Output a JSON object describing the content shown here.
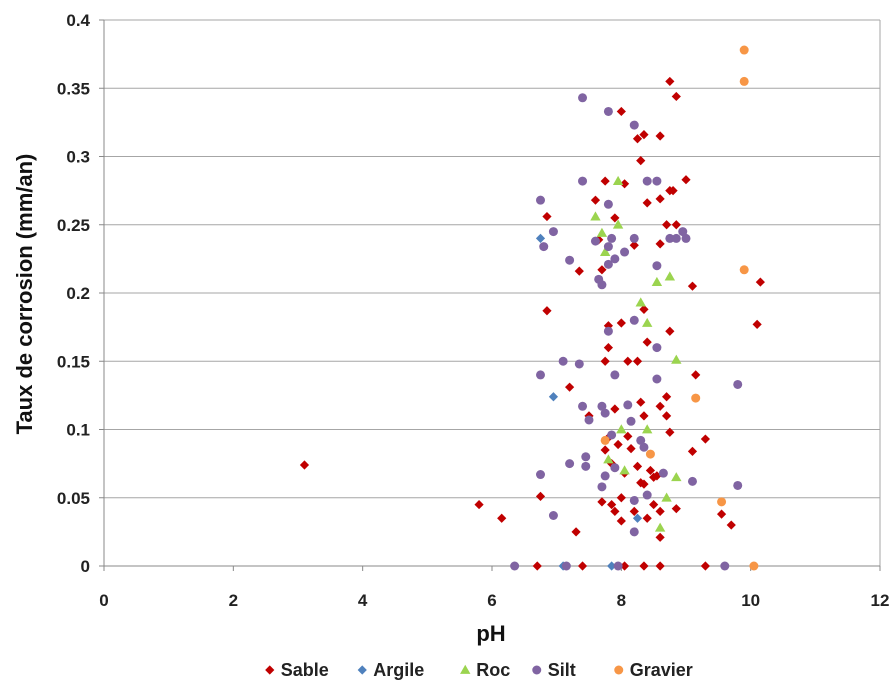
{
  "chart_data": {
    "type": "scatter",
    "title": "",
    "xlabel": "pH",
    "ylabel": "Taux de corrosion (mm/an)",
    "xlim": [
      0,
      12
    ],
    "ylim": [
      0,
      0.4
    ],
    "x_ticks": [
      "0",
      "2",
      "4",
      "6",
      "8",
      "10",
      "12"
    ],
    "y_ticks": [
      "0",
      "0.05",
      "0.1",
      "0.15",
      "0.2",
      "0.25",
      "0.3",
      "0.35",
      "0.4"
    ],
    "grid": "horizontal",
    "legend_position": "bottom",
    "series": [
      {
        "name": "Sable",
        "color": "#c00000",
        "marker": "diamond",
        "points": [
          [
            3.1,
            0.074
          ],
          [
            5.8,
            0.045
          ],
          [
            6.15,
            0.035
          ],
          [
            6.7,
            0
          ],
          [
            6.75,
            0.051
          ],
          [
            6.85,
            0.187
          ],
          [
            6.85,
            0.256
          ],
          [
            7.2,
            0.131
          ],
          [
            7.3,
            0.025
          ],
          [
            7.35,
            0.216
          ],
          [
            7.4,
            0
          ],
          [
            7.5,
            0.11
          ],
          [
            7.6,
            0.268
          ],
          [
            7.65,
            0.239
          ],
          [
            7.7,
            0.217
          ],
          [
            7.7,
            0.047
          ],
          [
            7.75,
            0.282
          ],
          [
            7.75,
            0.15
          ],
          [
            7.75,
            0.085
          ],
          [
            7.8,
            0.176
          ],
          [
            7.8,
            0.16
          ],
          [
            7.8,
            0.094
          ],
          [
            7.85,
            0.075
          ],
          [
            7.85,
            0.045
          ],
          [
            7.9,
            0.255
          ],
          [
            7.9,
            0.115
          ],
          [
            7.9,
            0.04
          ],
          [
            7.95,
            0.089
          ],
          [
            8.0,
            0.333
          ],
          [
            8.0,
            0.178
          ],
          [
            8.0,
            0.05
          ],
          [
            8.0,
            0.033
          ],
          [
            8.05,
            0.28
          ],
          [
            8.05,
            0.068
          ],
          [
            8.05,
            0
          ],
          [
            8.1,
            0.15
          ],
          [
            8.1,
            0.095
          ],
          [
            8.15,
            0.086
          ],
          [
            8.2,
            0.235
          ],
          [
            8.2,
            0.04
          ],
          [
            8.25,
            0.313
          ],
          [
            8.25,
            0.15
          ],
          [
            8.25,
            0.073
          ],
          [
            8.3,
            0.297
          ],
          [
            8.3,
            0.12
          ],
          [
            8.3,
            0.061
          ],
          [
            8.35,
            0.316
          ],
          [
            8.35,
            0.188
          ],
          [
            8.35,
            0.11
          ],
          [
            8.35,
            0.06
          ],
          [
            8.35,
            0
          ],
          [
            8.4,
            0.266
          ],
          [
            8.4,
            0.164
          ],
          [
            8.4,
            0.035
          ],
          [
            8.45,
            0.07
          ],
          [
            8.5,
            0.065
          ],
          [
            8.5,
            0.045
          ],
          [
            8.55,
            0.066
          ],
          [
            8.6,
            0.315
          ],
          [
            8.6,
            0.269
          ],
          [
            8.6,
            0.236
          ],
          [
            8.6,
            0.117
          ],
          [
            8.6,
            0.04
          ],
          [
            8.6,
            0.021
          ],
          [
            8.6,
            0
          ],
          [
            8.7,
            0.25
          ],
          [
            8.7,
            0.124
          ],
          [
            8.7,
            0.11
          ],
          [
            8.75,
            0.355
          ],
          [
            8.75,
            0.275
          ],
          [
            8.75,
            0.172
          ],
          [
            8.75,
            0.098
          ],
          [
            8.8,
            0.275
          ],
          [
            8.85,
            0.344
          ],
          [
            8.85,
            0.25
          ],
          [
            8.85,
            0.042
          ],
          [
            9.0,
            0.283
          ],
          [
            9.1,
            0.205
          ],
          [
            9.1,
            0.084
          ],
          [
            9.15,
            0.14
          ],
          [
            9.3,
            0.093
          ],
          [
            9.3,
            0
          ],
          [
            9.55,
            0.038
          ],
          [
            9.7,
            0.03
          ],
          [
            10.1,
            0.177
          ],
          [
            10.15,
            0.208
          ]
        ]
      },
      {
        "name": "Argile",
        "color": "#4f81bd",
        "marker": "diamond",
        "points": [
          [
            6.75,
            0.24
          ],
          [
            6.95,
            0.124
          ],
          [
            7.1,
            0
          ],
          [
            7.85,
            0
          ],
          [
            8.25,
            0.035
          ]
        ]
      },
      {
        "name": "Roc",
        "color": "#9bd44f",
        "marker": "triangle",
        "points": [
          [
            7.6,
            0.256
          ],
          [
            7.7,
            0.244
          ],
          [
            7.75,
            0.23
          ],
          [
            7.8,
            0.078
          ],
          [
            7.95,
            0.282
          ],
          [
            7.95,
            0.25
          ],
          [
            8.0,
            0.1
          ],
          [
            8.05,
            0.07
          ],
          [
            8.3,
            0.193
          ],
          [
            8.4,
            0.178
          ],
          [
            8.4,
            0.1
          ],
          [
            8.55,
            0.208
          ],
          [
            8.6,
            0.028
          ],
          [
            8.7,
            0.05
          ],
          [
            8.75,
            0.212
          ],
          [
            8.85,
            0.151
          ],
          [
            8.85,
            0.065
          ]
        ]
      },
      {
        "name": "Silt",
        "color": "#8064a2",
        "marker": "circle",
        "points": [
          [
            6.35,
            0
          ],
          [
            6.75,
            0.268
          ],
          [
            6.75,
            0.14
          ],
          [
            6.75,
            0.067
          ],
          [
            6.8,
            0.234
          ],
          [
            6.95,
            0.245
          ],
          [
            6.95,
            0.037
          ],
          [
            7.1,
            0.15
          ],
          [
            7.15,
            0
          ],
          [
            7.2,
            0.075
          ],
          [
            7.2,
            0.224
          ],
          [
            7.35,
            0.148
          ],
          [
            7.4,
            0.343
          ],
          [
            7.4,
            0.282
          ],
          [
            7.4,
            0.117
          ],
          [
            7.45,
            0.08
          ],
          [
            7.45,
            0.073
          ],
          [
            7.5,
            0.107
          ],
          [
            7.6,
            0.238
          ],
          [
            7.65,
            0.21
          ],
          [
            7.7,
            0.206
          ],
          [
            7.7,
            0.117
          ],
          [
            7.7,
            0.058
          ],
          [
            7.75,
            0.112
          ],
          [
            7.75,
            0.066
          ],
          [
            7.8,
            0.333
          ],
          [
            7.8,
            0.265
          ],
          [
            7.8,
            0.234
          ],
          [
            7.8,
            0.221
          ],
          [
            7.8,
            0.172
          ],
          [
            7.85,
            0.24
          ],
          [
            7.85,
            0.096
          ],
          [
            7.9,
            0.225
          ],
          [
            7.9,
            0.14
          ],
          [
            7.9,
            0.072
          ],
          [
            7.95,
            0
          ],
          [
            8.05,
            0.23
          ],
          [
            8.1,
            0.118
          ],
          [
            8.15,
            0.106
          ],
          [
            8.2,
            0.323
          ],
          [
            8.2,
            0.24
          ],
          [
            8.2,
            0.18
          ],
          [
            8.2,
            0.048
          ],
          [
            8.2,
            0.025
          ],
          [
            8.3,
            0.092
          ],
          [
            8.35,
            0.087
          ],
          [
            8.4,
            0.282
          ],
          [
            8.4,
            0.052
          ],
          [
            8.55,
            0.282
          ],
          [
            8.55,
            0.22
          ],
          [
            8.55,
            0.16
          ],
          [
            8.55,
            0.137
          ],
          [
            8.65,
            0.068
          ],
          [
            8.75,
            0.24
          ],
          [
            8.85,
            0.24
          ],
          [
            8.95,
            0.245
          ],
          [
            9.0,
            0.24
          ],
          [
            9.1,
            0.062
          ],
          [
            9.6,
            0
          ],
          [
            9.8,
            0.133
          ],
          [
            9.8,
            0.059
          ]
        ]
      },
      {
        "name": "Gravier",
        "color": "#f79646",
        "marker": "circle",
        "points": [
          [
            7.75,
            0.092
          ],
          [
            8.45,
            0.082
          ],
          [
            9.15,
            0.123
          ],
          [
            9.55,
            0.047
          ],
          [
            9.9,
            0.378
          ],
          [
            9.9,
            0.355
          ],
          [
            9.9,
            0.217
          ],
          [
            10.05,
            0
          ]
        ]
      }
    ]
  }
}
